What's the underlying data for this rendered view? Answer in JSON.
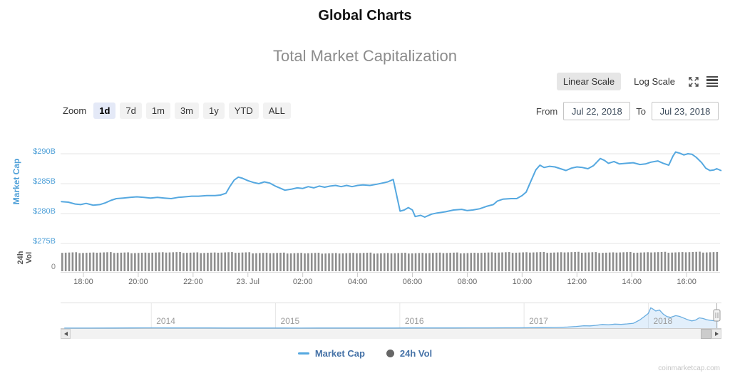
{
  "page": {
    "title": "Global Charts",
    "watermark": "coinmarketcap.com"
  },
  "toolbar": {
    "linear": "Linear Scale",
    "log": "Log Scale"
  },
  "range": {
    "zoom_label": "Zoom",
    "buttons": [
      "1d",
      "7d",
      "1m",
      "3m",
      "1y",
      "YTD",
      "ALL"
    ],
    "selected": "1d",
    "from_label": "From",
    "from_value": "Jul 22, 2018",
    "to_label": "To",
    "to_value": "Jul 23, 2018"
  },
  "axes": {
    "market_cap_title": "Market Cap",
    "vol_title_line1": "24h",
    "vol_title_line2": "Vol",
    "vol_zero": "0"
  },
  "legend": {
    "market_cap": "Market Cap",
    "vol": "24h Vol"
  },
  "colors": {
    "line": "#55a8e0",
    "axis_label": "#4fa0d8",
    "volume": "#8e8e8e",
    "legend_text": "#4572a7",
    "nav_line": "#69ade0",
    "nav_fill": "rgba(124,181,236,0.22)",
    "gridline": "#e6e6e6"
  },
  "chart_data": {
    "type": "line",
    "title": "Total Market Capitalization",
    "ylabel": "Market Cap",
    "y_unit": "USD billions",
    "x_unit": "hours since Jul 22 2018 00:00 UTC",
    "legend_position": "bottom-center",
    "grid": true,
    "main_series": {
      "name": "Market Cap",
      "points": [
        [
          17.2,
          282.0
        ],
        [
          17.45,
          281.9
        ],
        [
          17.7,
          281.6
        ],
        [
          17.9,
          281.5
        ],
        [
          18.1,
          281.7
        ],
        [
          18.35,
          281.4
        ],
        [
          18.6,
          281.5
        ],
        [
          18.8,
          281.8
        ],
        [
          19.0,
          282.2
        ],
        [
          19.2,
          282.5
        ],
        [
          19.45,
          282.6
        ],
        [
          19.7,
          282.7
        ],
        [
          19.95,
          282.8
        ],
        [
          20.2,
          282.7
        ],
        [
          20.45,
          282.6
        ],
        [
          20.7,
          282.7
        ],
        [
          20.95,
          282.6
        ],
        [
          21.2,
          282.5
        ],
        [
          21.45,
          282.7
        ],
        [
          21.7,
          282.8
        ],
        [
          21.95,
          282.9
        ],
        [
          22.2,
          282.9
        ],
        [
          22.5,
          283.0
        ],
        [
          22.8,
          283.0
        ],
        [
          23.0,
          283.1
        ],
        [
          23.2,
          283.4
        ],
        [
          23.35,
          284.6
        ],
        [
          23.5,
          285.6
        ],
        [
          23.65,
          286.1
        ],
        [
          23.8,
          285.9
        ],
        [
          24.0,
          285.5
        ],
        [
          24.2,
          285.2
        ],
        [
          24.4,
          285.0
        ],
        [
          24.6,
          285.3
        ],
        [
          24.8,
          285.1
        ],
        [
          25.0,
          284.6
        ],
        [
          25.2,
          284.2
        ],
        [
          25.35,
          283.9
        ],
        [
          25.6,
          284.1
        ],
        [
          25.8,
          284.3
        ],
        [
          26.0,
          284.2
        ],
        [
          26.2,
          284.5
        ],
        [
          26.4,
          284.3
        ],
        [
          26.6,
          284.6
        ],
        [
          26.8,
          284.4
        ],
        [
          27.0,
          284.6
        ],
        [
          27.2,
          284.7
        ],
        [
          27.4,
          284.5
        ],
        [
          27.6,
          284.7
        ],
        [
          27.8,
          284.5
        ],
        [
          28.0,
          284.7
        ],
        [
          28.2,
          284.8
        ],
        [
          28.45,
          284.7
        ],
        [
          28.7,
          284.9
        ],
        [
          28.9,
          285.1
        ],
        [
          29.1,
          285.3
        ],
        [
          29.3,
          285.7
        ],
        [
          29.45,
          282.5
        ],
        [
          29.55,
          280.4
        ],
        [
          29.7,
          280.6
        ],
        [
          29.85,
          281.0
        ],
        [
          30.0,
          280.6
        ],
        [
          30.1,
          279.5
        ],
        [
          30.3,
          279.7
        ],
        [
          30.45,
          279.4
        ],
        [
          30.7,
          279.9
        ],
        [
          30.9,
          280.1
        ],
        [
          31.2,
          280.3
        ],
        [
          31.5,
          280.6
        ],
        [
          31.8,
          280.7
        ],
        [
          32.0,
          280.5
        ],
        [
          32.2,
          280.6
        ],
        [
          32.45,
          280.8
        ],
        [
          32.7,
          281.2
        ],
        [
          32.95,
          281.5
        ],
        [
          33.1,
          282.1
        ],
        [
          33.3,
          282.4
        ],
        [
          33.6,
          282.5
        ],
        [
          33.8,
          282.5
        ],
        [
          34.0,
          283.0
        ],
        [
          34.15,
          283.6
        ],
        [
          34.3,
          285.2
        ],
        [
          34.5,
          287.3
        ],
        [
          34.65,
          288.1
        ],
        [
          34.8,
          287.7
        ],
        [
          35.0,
          287.9
        ],
        [
          35.2,
          287.8
        ],
        [
          35.4,
          287.5
        ],
        [
          35.6,
          287.2
        ],
        [
          35.8,
          287.6
        ],
        [
          36.0,
          287.8
        ],
        [
          36.2,
          287.7
        ],
        [
          36.4,
          287.5
        ],
        [
          36.6,
          288.0
        ],
        [
          36.85,
          289.2
        ],
        [
          37.0,
          288.9
        ],
        [
          37.15,
          288.4
        ],
        [
          37.35,
          288.7
        ],
        [
          37.55,
          288.3
        ],
        [
          37.8,
          288.4
        ],
        [
          38.05,
          288.5
        ],
        [
          38.3,
          288.2
        ],
        [
          38.5,
          288.3
        ],
        [
          38.7,
          288.6
        ],
        [
          38.95,
          288.8
        ],
        [
          39.15,
          288.4
        ],
        [
          39.35,
          288.1
        ],
        [
          39.5,
          289.6
        ],
        [
          39.6,
          290.3
        ],
        [
          39.75,
          290.1
        ],
        [
          39.9,
          289.8
        ],
        [
          40.05,
          290.0
        ],
        [
          40.2,
          289.9
        ],
        [
          40.35,
          289.4
        ],
        [
          40.55,
          288.5
        ],
        [
          40.7,
          287.6
        ],
        [
          40.85,
          287.2
        ],
        [
          41.0,
          287.3
        ],
        [
          41.1,
          287.5
        ],
        [
          41.25,
          287.2
        ]
      ]
    },
    "volume_series": {
      "name": "24h Vol",
      "approx_values_billions": [
        14.2,
        14.0,
        14.3,
        14.1,
        13.9,
        14.2,
        14.4,
        14.1,
        14.0,
        14.3,
        14.2,
        13.8,
        13.9,
        13.7,
        13.8,
        13.6,
        13.7,
        13.9,
        13.6,
        13.8,
        13.7,
        13.9,
        14.0,
        13.8,
        14.1,
        14.3,
        14.2,
        14.4,
        14.2,
        14.5,
        14.3,
        14.1,
        14.4,
        14.2,
        14.5,
        14.3,
        14.6,
        14.4
      ]
    },
    "yaxis": {
      "range": [
        273.5,
        291.5
      ],
      "ticks": [
        {
          "v": 290,
          "label": "$290B"
        },
        {
          "v": 285,
          "label": "$285B"
        },
        {
          "v": 280,
          "label": "$280B"
        },
        {
          "v": 275,
          "label": "$275B"
        }
      ],
      "vol_zero_label": "0"
    },
    "xaxis": {
      "range_hours": [
        17.17,
        41.25
      ],
      "ticks": [
        {
          "t": 18,
          "label": "18:00"
        },
        {
          "t": 20,
          "label": "20:00"
        },
        {
          "t": 22,
          "label": "22:00"
        },
        {
          "t": 24,
          "label": "23. Jul"
        },
        {
          "t": 26,
          "label": "02:00"
        },
        {
          "t": 28,
          "label": "04:00"
        },
        {
          "t": 30,
          "label": "06:00"
        },
        {
          "t": 32,
          "label": "08:00"
        },
        {
          "t": 34,
          "label": "10:00"
        },
        {
          "t": 36,
          "label": "12:00"
        },
        {
          "t": 38,
          "label": "14:00"
        },
        {
          "t": 40,
          "label": "16:00"
        }
      ]
    },
    "navigator": {
      "year_ticks": [
        2014,
        2015,
        2016,
        2017,
        2018
      ],
      "range_years": [
        2013.27,
        2018.56
      ],
      "points": [
        [
          2013.3,
          2
        ],
        [
          2013.5,
          3
        ],
        [
          2013.7,
          5
        ],
        [
          2013.85,
          9
        ],
        [
          2013.95,
          13
        ],
        [
          2014.05,
          12
        ],
        [
          2014.15,
          10
        ],
        [
          2014.3,
          8
        ],
        [
          2014.45,
          9
        ],
        [
          2014.6,
          7
        ],
        [
          2014.75,
          6
        ],
        [
          2014.9,
          5
        ],
        [
          2015.05,
          4.5
        ],
        [
          2015.2,
          4
        ],
        [
          2015.35,
          5
        ],
        [
          2015.5,
          4.6
        ],
        [
          2015.65,
          4.4
        ],
        [
          2015.8,
          4.8
        ],
        [
          2015.95,
          6
        ],
        [
          2016.1,
          8
        ],
        [
          2016.25,
          8.5
        ],
        [
          2016.4,
          9.5
        ],
        [
          2016.55,
          12
        ],
        [
          2016.7,
          12.5
        ],
        [
          2016.85,
          13.5
        ],
        [
          2016.95,
          15
        ],
        [
          2017.05,
          18
        ],
        [
          2017.15,
          24
        ],
        [
          2017.25,
          27
        ],
        [
          2017.35,
          45
        ],
        [
          2017.42,
          70
        ],
        [
          2017.48,
          100
        ],
        [
          2017.53,
          92
        ],
        [
          2017.58,
          115
        ],
        [
          2017.63,
          150
        ],
        [
          2017.68,
          135
        ],
        [
          2017.73,
          165
        ],
        [
          2017.78,
          155
        ],
        [
          2017.83,
          175
        ],
        [
          2017.88,
          200
        ],
        [
          2017.93,
          330
        ],
        [
          2017.97,
          480
        ],
        [
          2018.0,
          600
        ],
        [
          2018.02,
          830
        ],
        [
          2018.04,
          770
        ],
        [
          2018.06,
          700
        ],
        [
          2018.09,
          740
        ],
        [
          2018.12,
          570
        ],
        [
          2018.15,
          470
        ],
        [
          2018.18,
          440
        ],
        [
          2018.22,
          510
        ],
        [
          2018.25,
          480
        ],
        [
          2018.29,
          400
        ],
        [
          2018.32,
          340
        ],
        [
          2018.35,
          295
        ],
        [
          2018.38,
          330
        ],
        [
          2018.41,
          420
        ],
        [
          2018.44,
          395
        ],
        [
          2018.47,
          345
        ],
        [
          2018.5,
          320
        ],
        [
          2018.53,
          300
        ],
        [
          2018.56,
          287
        ]
      ]
    }
  }
}
